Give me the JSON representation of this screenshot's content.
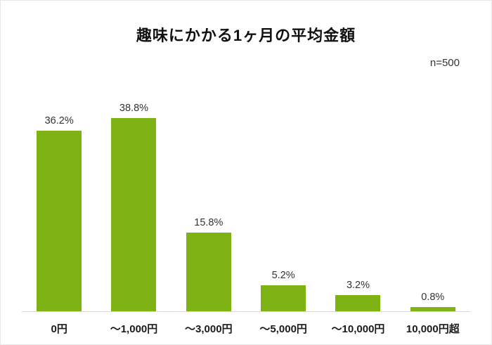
{
  "chart_data": {
    "type": "bar",
    "title": "趣味にかかる1ヶ月の平均金額",
    "annotation": "n=500",
    "categories": [
      "0円",
      "～1,000円",
      "～3,000円",
      "～5,000円",
      "～10,000円",
      "10,000円超"
    ],
    "values": [
      36.2,
      38.8,
      15.8,
      5.2,
      3.2,
      0.8
    ],
    "value_labels": [
      "36.2%",
      "38.8%",
      "15.8%",
      "5.2%",
      "3.2%",
      "0.8%"
    ],
    "bar_color": "#7fb315",
    "axis_line_color": "#d9d9d9",
    "ylim": [
      0,
      40
    ],
    "grid": false,
    "legend": false,
    "xlabel": "",
    "ylabel": ""
  }
}
